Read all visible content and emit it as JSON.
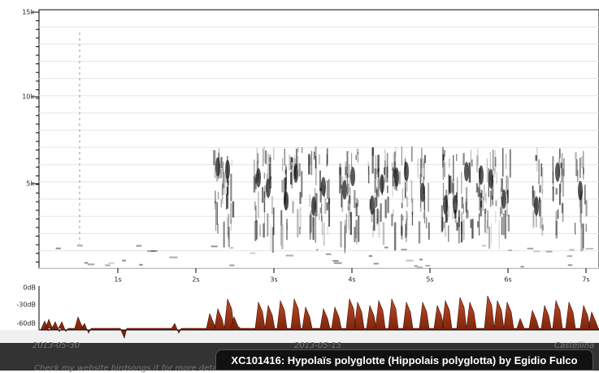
{
  "spectrogram": {
    "y_labels": [
      "15k",
      "10k",
      "5k"
    ],
    "x_labels": [
      "1s",
      "2s",
      "3s",
      "4s",
      "5s",
      "6s",
      "7s"
    ]
  },
  "amplitude": {
    "y_labels": [
      "0dB",
      "-30dB",
      "-60dB"
    ]
  },
  "footer": {
    "date_left": "2013-05-30",
    "date_mid": "2013-05-15",
    "note": "Check my website birdsongs.it for more details",
    "right": "Castellina"
  },
  "caption": "XC101416: Hypolaïs polyglotte (Hippolais polyglotta) by Egidio Fulco"
}
